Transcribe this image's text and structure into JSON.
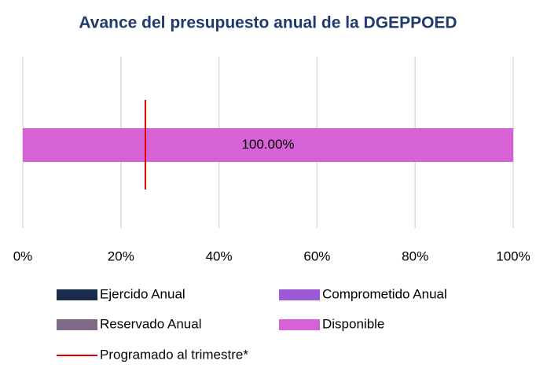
{
  "chart_data": {
    "type": "stacked_bar_horizontal",
    "title": "Avance del presupuesto anual de la DGEPPOED",
    "categories": [
      null
    ],
    "series": [
      {
        "name": "Ejercido Anual",
        "color": "#1b2b4b",
        "values": [
          0
        ]
      },
      {
        "name": "Comprometido Anual",
        "color": "#9d5ad8",
        "values": [
          0
        ]
      },
      {
        "name": "Reservado Anual",
        "color": "#7e6a86",
        "values": [
          0
        ]
      },
      {
        "name": "Disponible",
        "color": "#d663d6",
        "values": [
          100
        ],
        "value_labels": [
          "100.00%"
        ]
      }
    ],
    "reference_line": {
      "name": "Programado al trimestre*",
      "color": "#e00000",
      "value": 25
    },
    "xlim": [
      0,
      100
    ],
    "xticks": [
      {
        "value": 0,
        "label": "0%"
      },
      {
        "value": 20,
        "label": "20%"
      },
      {
        "value": 40,
        "label": "40%"
      },
      {
        "value": 60,
        "label": "60%"
      },
      {
        "value": 80,
        "label": "80%"
      },
      {
        "value": 100,
        "label": "100%"
      }
    ],
    "grid": true
  }
}
